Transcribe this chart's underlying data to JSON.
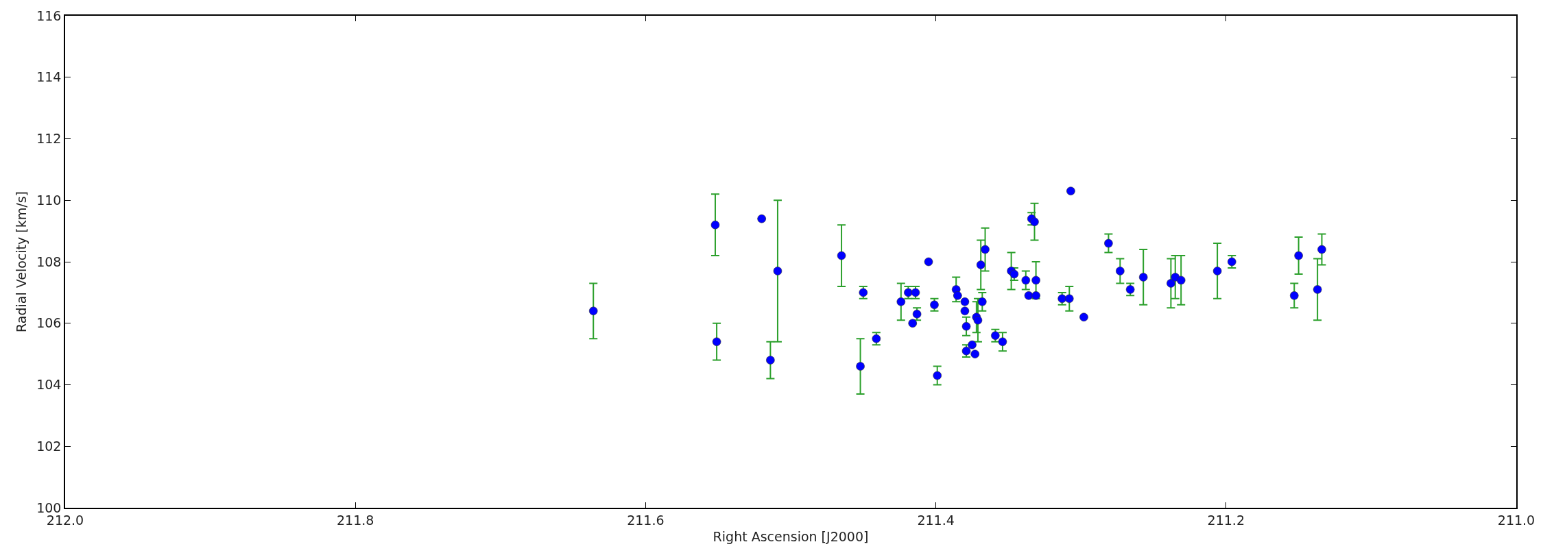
{
  "chart_data": {
    "type": "scatter",
    "xlabel": "Right Ascension [J2000]",
    "ylabel": "Radial Velocity [km/s]",
    "xlim": [
      212,
      211
    ],
    "xticks": [
      {
        "value": 212,
        "label": "212.0"
      },
      {
        "value": 211.8,
        "label": "211.8"
      },
      {
        "value": 211.6,
        "label": "211.6"
      },
      {
        "value": 211.4,
        "label": "211.4"
      },
      {
        "value": 211.2,
        "label": "211.2"
      },
      {
        "value": 211,
        "label": "211.0"
      }
    ],
    "ylim": [
      100,
      116
    ],
    "yticks": [
      100,
      102,
      104,
      106,
      108,
      110,
      112,
      114,
      116
    ],
    "grid": false,
    "marker": "circle",
    "series": [
      {
        "color": "#0000ff",
        "x": [
          211.636,
          211.552,
          211.551,
          211.52,
          211.514,
          211.509,
          211.465,
          211.452,
          211.45,
          211.441,
          211.424,
          211.419,
          211.416,
          211.414,
          211.413,
          211.405,
          211.401,
          211.399,
          211.386,
          211.385,
          211.38,
          211.38,
          211.379,
          211.379,
          211.375,
          211.373,
          211.372,
          211.371,
          211.369,
          211.368,
          211.366,
          211.359,
          211.354,
          211.348,
          211.346,
          211.338,
          211.336,
          211.334,
          211.332,
          211.331,
          211.331,
          211.313,
          211.308,
          211.307,
          211.298,
          211.281,
          211.273,
          211.266,
          211.257,
          211.238,
          211.235,
          211.231,
          211.206,
          211.196,
          211.153,
          211.15,
          211.137,
          211.134
        ],
        "values": [
          106.4,
          109.2,
          105.4,
          109.4,
          104.8,
          107.7,
          108.2,
          104.6,
          107.0,
          105.5,
          106.7,
          107.0,
          106.0,
          107.0,
          106.3,
          108.0,
          106.6,
          104.3,
          107.1,
          106.9,
          106.7,
          106.4,
          105.9,
          105.1,
          105.3,
          105.0,
          106.2,
          106.1,
          107.9,
          106.7,
          108.4,
          105.6,
          105.4,
          107.7,
          107.6,
          107.4,
          106.9,
          109.4,
          109.3,
          106.9,
          107.4,
          106.8,
          106.8,
          110.3,
          106.2,
          108.6,
          107.7,
          107.1,
          107.5,
          107.3,
          107.5,
          107.4,
          107.7,
          108.0,
          106.9,
          108.2,
          107.1,
          108.4
        ],
        "errors": [
          0.9,
          1.0,
          0.6,
          null,
          0.6,
          2.3,
          1.0,
          0.9,
          0.2,
          0.2,
          0.6,
          0.2,
          null,
          0.2,
          0.2,
          null,
          0.2,
          0.3,
          0.4,
          null,
          null,
          null,
          0.3,
          0.2,
          null,
          null,
          0.5,
          0.7,
          0.8,
          0.3,
          0.7,
          0.2,
          0.3,
          0.6,
          0.2,
          0.3,
          null,
          0.2,
          0.6,
          null,
          0.6,
          0.2,
          0.4,
          null,
          null,
          0.3,
          0.4,
          0.2,
          0.9,
          0.8,
          0.7,
          0.8,
          0.9,
          0.2,
          0.4,
          0.6,
          1.0,
          0.5
        ]
      }
    ]
  }
}
